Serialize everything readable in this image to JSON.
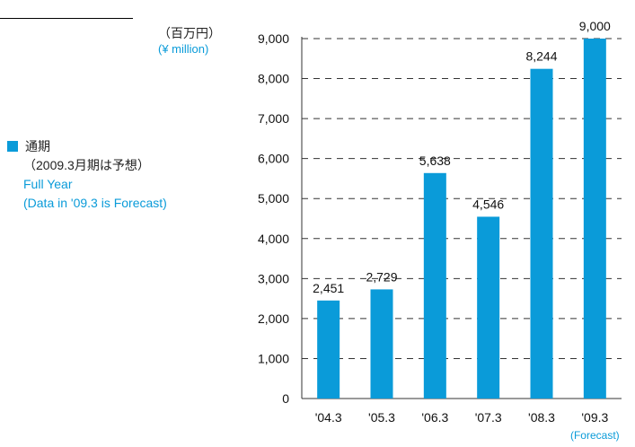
{
  "unit": {
    "jp": "（百万円）",
    "en": "(¥ million)"
  },
  "legend": {
    "label_jp": "通期",
    "note_jp": "（2009.3月期は予想）",
    "label_en": "Full Year",
    "note_en": "(Data in '09.3 is Forecast)",
    "color": "#0a9bd9"
  },
  "chart_data": {
    "type": "bar",
    "categories": [
      "'04.3",
      "'05.3",
      "'06.3",
      "'07.3",
      "'08.3",
      "'09.3"
    ],
    "values": [
      2451,
      2729,
      5638,
      4546,
      8244,
      9000
    ],
    "value_labels": [
      "2,451",
      "2,729",
      "5,638",
      "4,546",
      "8,244",
      "9,000"
    ],
    "yticks": [
      "0",
      "1,000",
      "2,000",
      "3,000",
      "4,000",
      "5,000",
      "6,000",
      "7,000",
      "8,000",
      "9,000"
    ],
    "ylim": [
      0,
      9000
    ],
    "grid": "dashed horizontal",
    "forecast_note": "(Forecast)",
    "bar_color": "#0a9bd9"
  }
}
